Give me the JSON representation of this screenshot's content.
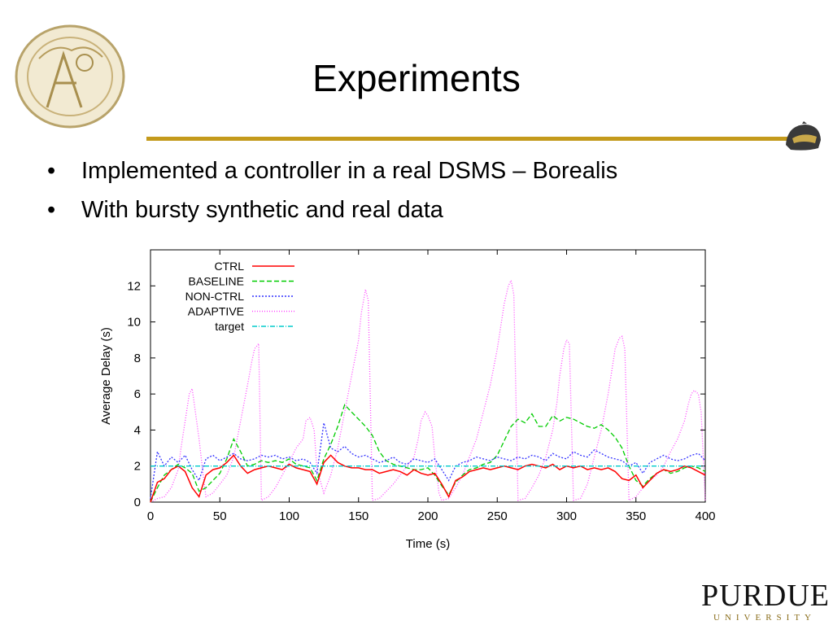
{
  "slide": {
    "title": "Experiments",
    "bullets": [
      "Implemented a controller in a real DSMS – Borealis",
      "With bursty synthetic and real data"
    ],
    "accent_color": "#c49a1c"
  },
  "logo": {
    "name": "PURDUE",
    "subtitle": "UNIVERSITY"
  },
  "seal": {
    "text": "purdue university"
  },
  "chart_data": {
    "type": "line",
    "xlabel": "Time (s)",
    "ylabel": "Average Delay (s)",
    "xlim": [
      0,
      400
    ],
    "ylim": [
      0,
      14
    ],
    "xticks": [
      0,
      50,
      100,
      150,
      200,
      250,
      300,
      350,
      400
    ],
    "yticks": [
      0,
      2,
      4,
      6,
      8,
      10,
      12
    ],
    "grid": false,
    "legend_position": "top-left",
    "series": [
      {
        "name": "CTRL",
        "color": "#ff0000",
        "dash": "",
        "x": [
          0,
          5,
          10,
          15,
          20,
          25,
          30,
          35,
          40,
          45,
          50,
          55,
          60,
          65,
          70,
          75,
          80,
          85,
          90,
          95,
          100,
          105,
          110,
          115,
          120,
          125,
          130,
          135,
          140,
          145,
          150,
          155,
          160,
          165,
          170,
          175,
          180,
          185,
          190,
          195,
          200,
          205,
          210,
          215,
          220,
          225,
          230,
          235,
          240,
          245,
          250,
          255,
          260,
          265,
          270,
          275,
          280,
          285,
          290,
          295,
          300,
          305,
          310,
          315,
          320,
          325,
          330,
          335,
          340,
          345,
          350,
          355,
          360,
          365,
          370,
          375,
          380,
          385,
          390,
          395,
          400
        ],
        "y": [
          0,
          1.1,
          1.3,
          1.8,
          2.0,
          1.7,
          0.8,
          0.3,
          1.5,
          1.8,
          1.9,
          2.2,
          2.6,
          2.0,
          1.6,
          1.8,
          1.9,
          2.0,
          1.9,
          1.8,
          2.1,
          1.9,
          1.8,
          1.7,
          1.0,
          2.2,
          2.6,
          2.2,
          2.0,
          1.9,
          1.9,
          1.8,
          1.8,
          1.6,
          1.7,
          1.8,
          1.7,
          1.5,
          1.8,
          1.6,
          1.5,
          1.6,
          1.0,
          0.3,
          1.2,
          1.4,
          1.7,
          1.8,
          1.9,
          1.8,
          1.9,
          2.0,
          1.9,
          1.8,
          2.0,
          2.1,
          2.0,
          1.9,
          2.1,
          1.8,
          2.0,
          1.9,
          2.0,
          1.8,
          1.9,
          1.8,
          1.9,
          1.7,
          1.3,
          1.2,
          1.5,
          0.8,
          1.2,
          1.6,
          1.8,
          1.7,
          1.8,
          2.0,
          1.9,
          1.7,
          1.5
        ]
      },
      {
        "name": "BASELINE",
        "color": "#00cc00",
        "dash": "6,3",
        "x": [
          0,
          5,
          10,
          15,
          20,
          25,
          30,
          35,
          40,
          45,
          50,
          55,
          60,
          65,
          70,
          75,
          80,
          85,
          90,
          95,
          100,
          105,
          110,
          115,
          120,
          125,
          130,
          135,
          140,
          145,
          150,
          155,
          160,
          165,
          170,
          175,
          180,
          185,
          190,
          195,
          200,
          205,
          210,
          215,
          220,
          225,
          230,
          235,
          240,
          245,
          250,
          255,
          260,
          265,
          270,
          275,
          280,
          285,
          290,
          295,
          300,
          305,
          310,
          315,
          320,
          325,
          330,
          335,
          340,
          345,
          350,
          355,
          360,
          365,
          370,
          375,
          380,
          385,
          390,
          395,
          400
        ],
        "y": [
          0,
          0.8,
          1.5,
          1.8,
          2.1,
          1.9,
          1.6,
          0.6,
          0.8,
          1.2,
          1.6,
          2.4,
          3.5,
          2.8,
          2.0,
          2.1,
          2.3,
          2.2,
          2.3,
          2.2,
          2.4,
          2.1,
          2.0,
          1.9,
          1.2,
          2.4,
          3.2,
          4.2,
          5.4,
          5.0,
          4.6,
          4.2,
          3.7,
          2.8,
          2.3,
          2.1,
          2.0,
          1.9,
          1.8,
          1.8,
          1.9,
          1.5,
          0.9,
          0.4,
          1.1,
          1.5,
          1.8,
          1.9,
          2.1,
          2.2,
          2.6,
          3.4,
          4.2,
          4.6,
          4.4,
          4.9,
          4.2,
          4.2,
          4.8,
          4.5,
          4.7,
          4.6,
          4.4,
          4.2,
          4.1,
          4.3,
          4.0,
          3.6,
          3.0,
          2.0,
          1.2,
          0.9,
          1.3,
          1.6,
          1.8,
          1.6,
          1.7,
          1.9,
          2.0,
          1.9,
          1.7
        ]
      },
      {
        "name": "NON-CTRL",
        "color": "#3333ff",
        "dash": "2,2",
        "x": [
          0,
          5,
          10,
          15,
          20,
          25,
          30,
          35,
          40,
          45,
          50,
          55,
          60,
          65,
          70,
          75,
          80,
          85,
          90,
          95,
          100,
          105,
          110,
          115,
          120,
          125,
          130,
          135,
          140,
          145,
          150,
          155,
          160,
          165,
          170,
          175,
          180,
          185,
          190,
          195,
          200,
          205,
          210,
          215,
          220,
          225,
          230,
          235,
          240,
          245,
          250,
          255,
          260,
          265,
          270,
          275,
          280,
          285,
          290,
          295,
          300,
          305,
          310,
          315,
          320,
          325,
          330,
          335,
          340,
          345,
          350,
          355,
          360,
          365,
          370,
          375,
          380,
          385,
          390,
          395,
          400
        ],
        "y": [
          0.2,
          2.8,
          2.0,
          2.5,
          2.2,
          2.6,
          1.8,
          1.2,
          2.4,
          2.6,
          2.3,
          2.5,
          2.7,
          2.4,
          2.3,
          2.4,
          2.6,
          2.5,
          2.6,
          2.4,
          2.5,
          2.3,
          2.4,
          2.2,
          1.6,
          4.4,
          3.0,
          2.8,
          3.1,
          2.7,
          2.5,
          2.6,
          2.4,
          2.2,
          2.3,
          2.5,
          2.2,
          2.1,
          2.4,
          2.3,
          2.2,
          2.4,
          1.8,
          1.2,
          2.0,
          2.2,
          2.3,
          2.5,
          2.4,
          2.3,
          2.5,
          2.4,
          2.3,
          2.5,
          2.4,
          2.6,
          2.5,
          2.3,
          2.7,
          2.5,
          2.4,
          2.8,
          2.6,
          2.5,
          2.9,
          2.7,
          2.5,
          2.4,
          2.3,
          2.0,
          2.2,
          1.6,
          2.2,
          2.4,
          2.6,
          2.4,
          2.3,
          2.4,
          2.6,
          2.7,
          2.3
        ]
      },
      {
        "name": "ADAPTIVE",
        "color": "#ff44ff",
        "dash": "1,2",
        "x": [
          0,
          5,
          10,
          15,
          20,
          22,
          25,
          28,
          30,
          32,
          35,
          38,
          40,
          45,
          50,
          55,
          60,
          65,
          70,
          73,
          75,
          78,
          80,
          85,
          90,
          95,
          100,
          105,
          110,
          112,
          115,
          118,
          120,
          125,
          130,
          135,
          140,
          145,
          150,
          152,
          155,
          157,
          160,
          165,
          170,
          175,
          180,
          185,
          190,
          193,
          195,
          198,
          200,
          203,
          205,
          208,
          210,
          215,
          220,
          225,
          230,
          235,
          240,
          245,
          250,
          253,
          255,
          258,
          260,
          262,
          265,
          270,
          275,
          280,
          285,
          290,
          293,
          295,
          298,
          300,
          302,
          305,
          310,
          315,
          320,
          325,
          330,
          333,
          335,
          338,
          340,
          342,
          345,
          350,
          355,
          360,
          365,
          370,
          375,
          380,
          385,
          388,
          390,
          392,
          395,
          397,
          400
        ],
        "y": [
          0,
          0.2,
          0.3,
          0.8,
          1.8,
          3.0,
          4.5,
          6.0,
          6.3,
          5.2,
          3.5,
          1.5,
          0.3,
          0.5,
          1.0,
          1.5,
          2.5,
          4.5,
          6.5,
          7.8,
          8.5,
          8.8,
          0.1,
          0.3,
          0.8,
          1.5,
          2.2,
          3.0,
          3.5,
          4.5,
          4.7,
          4.0,
          1.8,
          0.5,
          1.5,
          3.0,
          5.0,
          7.0,
          9.0,
          10.5,
          11.8,
          11.2,
          0.1,
          0.2,
          0.6,
          1.0,
          1.5,
          2.0,
          2.5,
          3.5,
          4.5,
          5.0,
          4.8,
          4.2,
          2.5,
          0.5,
          0.1,
          0.2,
          0.8,
          1.5,
          2.5,
          3.5,
          5.0,
          6.5,
          8.5,
          10.0,
          11.0,
          12.0,
          12.3,
          11.5,
          0.1,
          0.2,
          0.8,
          1.5,
          2.5,
          4.0,
          5.5,
          7.0,
          8.5,
          9.0,
          8.8,
          0.1,
          0.2,
          1.0,
          2.5,
          4.0,
          6.0,
          7.5,
          8.5,
          9.1,
          9.2,
          8.5,
          0.1,
          0.3,
          0.8,
          1.2,
          1.5,
          2.0,
          2.8,
          3.5,
          4.5,
          5.5,
          6.0,
          6.2,
          6.0,
          5.0,
          0.1
        ]
      },
      {
        "name": "target",
        "color": "#00cccc",
        "dash": "6,2,1,2",
        "x": [
          0,
          400
        ],
        "y": [
          2.0,
          2.0
        ]
      }
    ]
  }
}
